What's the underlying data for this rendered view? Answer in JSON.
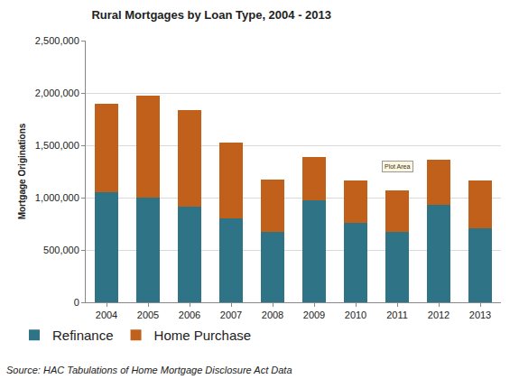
{
  "chart_data": {
    "type": "bar",
    "title": "Rural Mortgages by Loan Type, 2004 - 2013",
    "y_label": "Mortgage Originations",
    "note": "Source: HAC Tabulations of Home Mortgage Disclosure Act Data",
    "annotations": [
      {
        "text": "Plot Area",
        "x": "2011",
        "y": 1300000
      }
    ],
    "categories": [
      "2004",
      "2005",
      "2006",
      "2007",
      "2008",
      "2009",
      "2010",
      "2011",
      "2012",
      "2013"
    ],
    "series": [
      {
        "name": "Refinance",
        "color": "#2e7386",
        "values": [
          1050000,
          1000000,
          910000,
          800000,
          670000,
          970000,
          760000,
          670000,
          930000,
          710000
        ]
      },
      {
        "name": "Home Purchase",
        "color": "#c0601a",
        "values": [
          850000,
          975000,
          930000,
          730000,
          500000,
          420000,
          400000,
          400000,
          430000,
          450000
        ]
      }
    ],
    "stacked": true,
    "ylim": [
      0,
      2500000
    ],
    "yticks": [
      0,
      {
        "value": 500000,
        "label": "500,000"
      },
      {
        "value": 1000000,
        "label": "1,000,000"
      },
      {
        "value": 1500000,
        "label": "1,500,000"
      },
      {
        "value": 2000000,
        "label": "2,000,000"
      },
      {
        "value": 2500000,
        "label": "2,500,000"
      }
    ],
    "grid": true,
    "legend": "bottom-left"
  }
}
